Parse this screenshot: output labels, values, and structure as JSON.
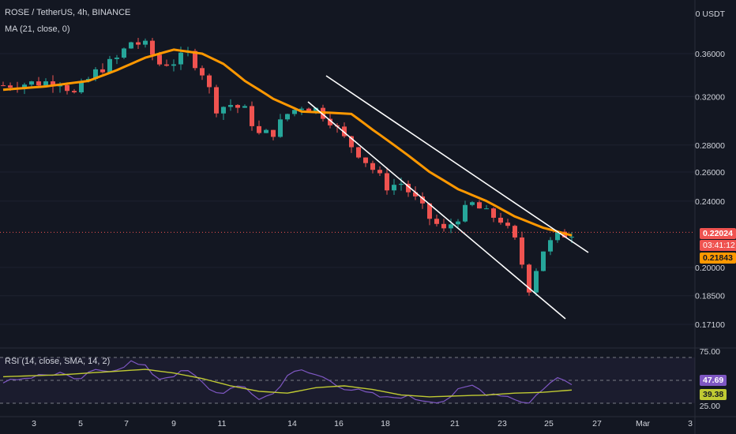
{
  "header": {
    "symbol_line": "ROSE / TetherUS, 4h, BINANCE",
    "ma_line": "MA (21, close, 0)",
    "rsi_line": "RSI (14, close, SMA, 14, 2)"
  },
  "price_scale": {
    "currency": "0 USDT",
    "labels": [
      "0.36000",
      "0.32000",
      "0.28000",
      "0.26000",
      "0.24000",
      "0.20000",
      "0.18500",
      "0.17100"
    ],
    "current_price": "0.22024",
    "countdown": "03:41:12",
    "ma_value": "0.21843"
  },
  "rsi_scale": {
    "labels": [
      "75.00",
      "25.00"
    ],
    "rsi_value": "47.69",
    "rsi_ma_value": "39.38"
  },
  "x_axis_labels": [
    "3",
    "5",
    "7",
    "9",
    "11",
    "14",
    "16",
    "18",
    "21",
    "23",
    "25",
    "27",
    "Mar",
    "3"
  ],
  "colors": {
    "background": "#131722",
    "up": "#26a69a",
    "down": "#ef5350",
    "ma": "#ff9800",
    "rsi": "#7e57c2",
    "rsi_ma": "#c0ca33",
    "channel": "#ffffff",
    "axis_text": "#d1d4dc"
  },
  "chart_data": {
    "type": "candlestick",
    "title": "ROSE / TetherUS, 4h, BINANCE",
    "x_ticks": [
      "3",
      "5",
      "7",
      "9",
      "11",
      "14",
      "16",
      "18",
      "21",
      "23",
      "25",
      "27",
      "Mar",
      "3"
    ],
    "y_ticks": [
      0.36,
      0.32,
      0.28,
      0.26,
      0.24,
      0.2,
      0.185,
      0.171
    ],
    "y_scale": "log",
    "ylim": [
      0.16,
      0.4
    ],
    "close_path": [
      [
        0,
        0.33
      ],
      [
        4,
        0.332
      ],
      [
        8,
        0.334
      ],
      [
        10,
        0.322
      ],
      [
        13,
        0.342
      ],
      [
        16,
        0.355
      ],
      [
        18,
        0.372
      ],
      [
        20,
        0.368
      ],
      [
        22,
        0.35
      ],
      [
        24,
        0.352
      ],
      [
        26,
        0.36
      ],
      [
        28,
        0.342
      ],
      [
        30,
        0.31
      ],
      [
        32,
        0.313
      ],
      [
        34,
        0.308
      ],
      [
        36,
        0.288
      ],
      [
        38,
        0.29
      ],
      [
        40,
        0.305
      ],
      [
        42,
        0.312
      ],
      [
        44,
        0.309
      ],
      [
        46,
        0.3
      ],
      [
        48,
        0.285
      ],
      [
        50,
        0.274
      ],
      [
        52,
        0.262
      ],
      [
        54,
        0.25
      ],
      [
        56,
        0.252
      ],
      [
        58,
        0.241
      ],
      [
        60,
        0.229
      ],
      [
        62,
        0.221
      ],
      [
        64,
        0.23
      ],
      [
        66,
        0.238
      ],
      [
        68,
        0.232
      ],
      [
        70,
        0.228
      ],
      [
        72,
        0.215
      ],
      [
        74,
        0.189
      ],
      [
        76,
        0.21
      ],
      [
        78,
        0.218
      ],
      [
        80,
        0.22
      ]
    ],
    "series": [
      {
        "name": "MA (21, close, 0)",
        "type": "line",
        "points": [
          [
            0,
            0.326
          ],
          [
            6,
            0.329
          ],
          [
            12,
            0.334
          ],
          [
            16,
            0.344
          ],
          [
            20,
            0.356
          ],
          [
            24,
            0.364
          ],
          [
            28,
            0.36
          ],
          [
            31,
            0.35
          ],
          [
            34,
            0.334
          ],
          [
            38,
            0.318
          ],
          [
            42,
            0.307
          ],
          [
            46,
            0.306
          ],
          [
            49,
            0.305
          ],
          [
            52,
            0.292
          ],
          [
            56,
            0.276
          ],
          [
            60,
            0.26
          ],
          [
            64,
            0.248
          ],
          [
            68,
            0.24
          ],
          [
            72,
            0.23
          ],
          [
            76,
            0.223
          ],
          [
            80,
            0.2184
          ]
        ]
      },
      {
        "name": "RSI (14, close, SMA, 14, 2)",
        "type": "line",
        "points": [
          [
            0,
            50
          ],
          [
            4,
            54
          ],
          [
            8,
            58
          ],
          [
            10,
            49
          ],
          [
            13,
            60
          ],
          [
            16,
            63
          ],
          [
            18,
            70
          ],
          [
            20,
            64
          ],
          [
            22,
            52
          ],
          [
            24,
            56
          ],
          [
            26,
            60
          ],
          [
            28,
            47
          ],
          [
            30,
            36
          ],
          [
            32,
            40
          ],
          [
            34,
            42
          ],
          [
            36,
            30
          ],
          [
            38,
            35
          ],
          [
            40,
            56
          ],
          [
            42,
            60
          ],
          [
            44,
            56
          ],
          [
            46,
            50
          ],
          [
            48,
            42
          ],
          [
            50,
            38
          ],
          [
            52,
            34
          ],
          [
            54,
            30
          ],
          [
            56,
            33
          ],
          [
            58,
            30
          ],
          [
            60,
            28
          ],
          [
            62,
            28
          ],
          [
            64,
            38
          ],
          [
            66,
            44
          ],
          [
            68,
            36
          ],
          [
            70,
            35
          ],
          [
            72,
            30
          ],
          [
            74,
            25
          ],
          [
            76,
            42
          ],
          [
            78,
            52
          ],
          [
            80,
            47.69
          ]
        ]
      },
      {
        "name": "RSI-based MA",
        "type": "line",
        "points": [
          [
            0,
            54
          ],
          [
            8,
            56
          ],
          [
            16,
            60
          ],
          [
            20,
            62
          ],
          [
            24,
            58
          ],
          [
            28,
            52
          ],
          [
            32,
            44
          ],
          [
            36,
            38
          ],
          [
            40,
            36
          ],
          [
            44,
            42
          ],
          [
            48,
            44
          ],
          [
            52,
            40
          ],
          [
            56,
            34
          ],
          [
            60,
            32
          ],
          [
            64,
            33
          ],
          [
            68,
            34
          ],
          [
            72,
            36
          ],
          [
            76,
            37
          ],
          [
            80,
            39.38
          ]
        ]
      }
    ],
    "annotations": [
      "descending channel lines"
    ]
  }
}
